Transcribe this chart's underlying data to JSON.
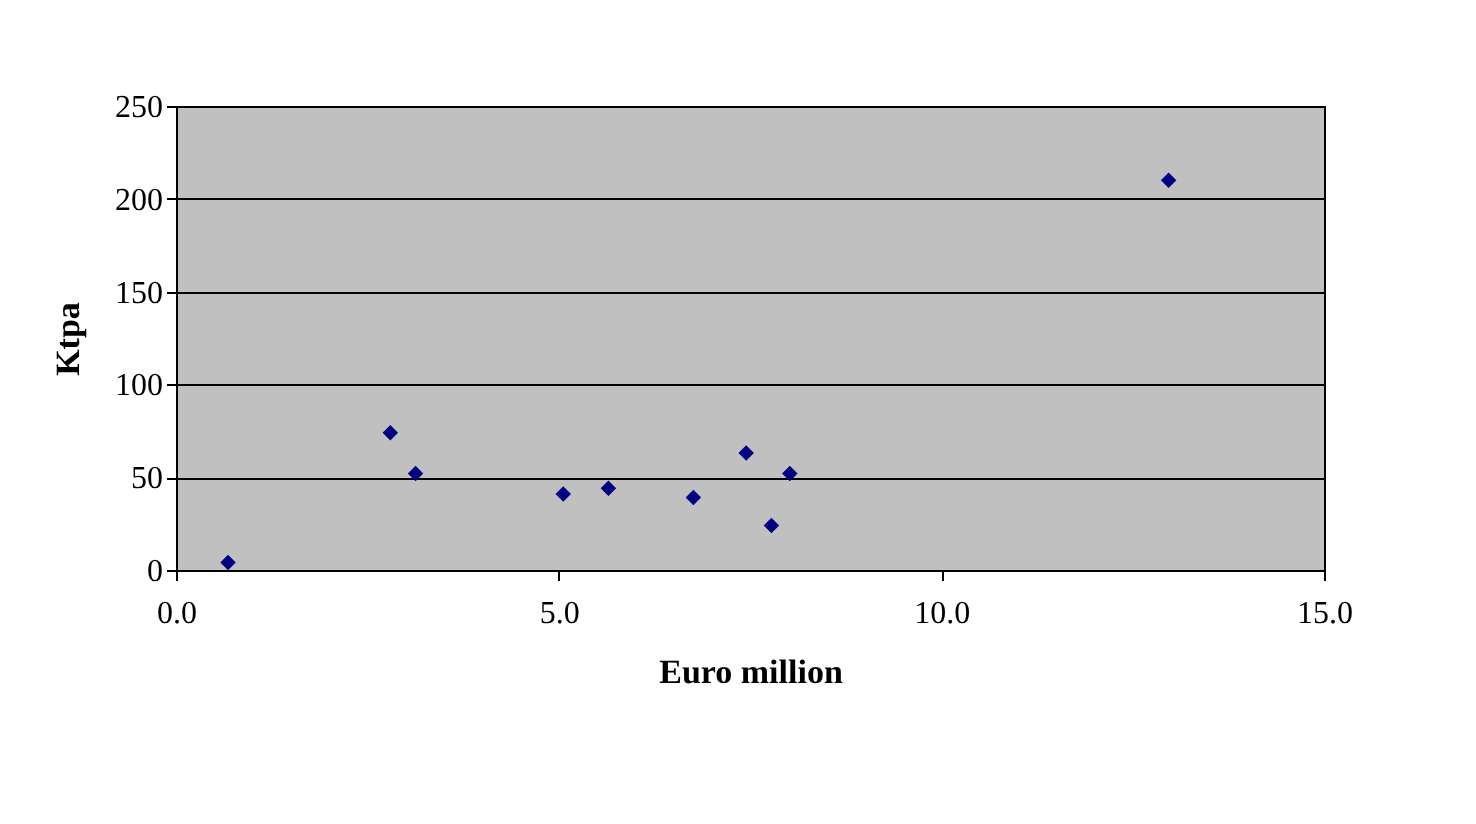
{
  "chart_data": {
    "type": "scatter",
    "xlabel": "Euro million",
    "ylabel": "Ktpa",
    "x": [
      0.68,
      2.8,
      3.13,
      5.06,
      5.65,
      6.76,
      7.45,
      7.78,
      8.02,
      12.97
    ],
    "values": [
      4,
      74,
      52,
      41,
      44,
      39,
      63,
      24,
      52,
      210
    ],
    "color": "#000080",
    "marker": "diamond",
    "xlim": [
      0,
      15
    ],
    "xticks": [
      {
        "value": 0,
        "label": "0.0"
      },
      {
        "value": 5,
        "label": "5.0"
      },
      {
        "value": 10,
        "label": "10.0"
      },
      {
        "value": 15,
        "label": "15.0"
      }
    ],
    "ylim": [
      0,
      250
    ],
    "yticks": [
      0,
      50,
      100,
      150,
      200,
      250
    ],
    "grid": "y"
  }
}
